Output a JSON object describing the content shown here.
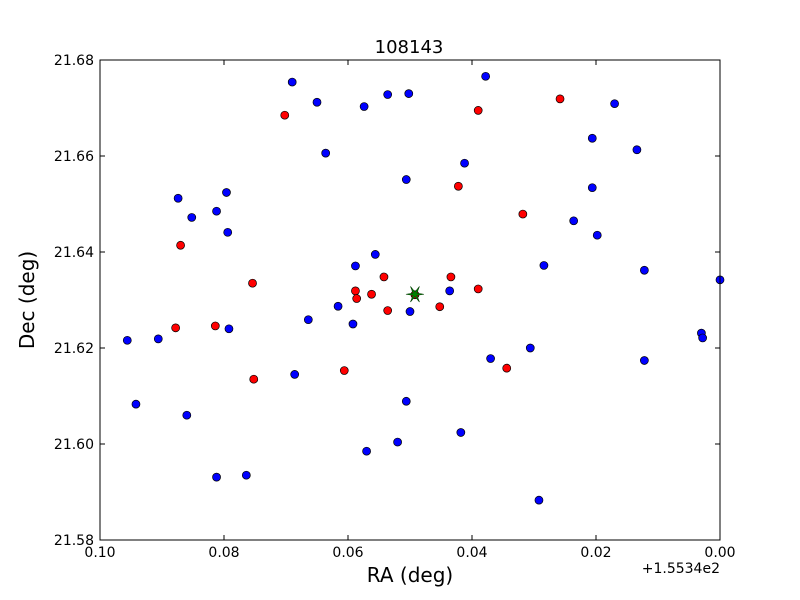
{
  "chart_data": {
    "type": "scatter",
    "title": "108143",
    "xlabel": "RA (deg)",
    "ylabel": "Dec (deg)",
    "x_offset_label": "+1.5534e2",
    "xlim": [
      0.1,
      0.0
    ],
    "ylim": [
      21.58,
      21.68
    ],
    "x_ticks": [
      0.1,
      0.08,
      0.06,
      0.04,
      0.02,
      0.0
    ],
    "x_tick_labels": [
      "0.10",
      "0.08",
      "0.06",
      "0.04",
      "0.02",
      "0.00"
    ],
    "y_ticks": [
      21.58,
      21.6,
      21.62,
      21.64,
      21.66,
      21.68
    ],
    "y_tick_labels": [
      "21.58",
      "21.60",
      "21.62",
      "21.64",
      "21.66",
      "21.68"
    ],
    "grid": false,
    "series": [
      {
        "color": "#0000ff",
        "marker": "circle",
        "points": [
          [
            0.069,
            21.6754
          ],
          [
            0.0378,
            21.6766
          ],
          [
            0.065,
            21.6712
          ],
          [
            0.0574,
            21.6703
          ],
          [
            0.0536,
            21.6728
          ],
          [
            0.0502,
            21.673
          ],
          [
            0.017,
            21.6709
          ],
          [
            0.0206,
            21.6637
          ],
          [
            0.0134,
            21.6613
          ],
          [
            0.0636,
            21.6606
          ],
          [
            0.0412,
            21.6585
          ],
          [
            0.0506,
            21.6551
          ],
          [
            0.0206,
            21.6534
          ],
          [
            0.0874,
            21.6512
          ],
          [
            0.0796,
            21.6524
          ],
          [
            0.0852,
            21.6472
          ],
          [
            0.0812,
            21.6485
          ],
          [
            0.0236,
            21.6465
          ],
          [
            0.0794,
            21.6441
          ],
          [
            0.0198,
            21.6435
          ],
          [
            0.0556,
            21.6395
          ],
          [
            0.0588,
            21.6371
          ],
          [
            0.0284,
            21.6372
          ],
          [
            0.0122,
            21.6362
          ],
          [
            0.0,
            21.6342
          ],
          [
            0.0436,
            21.6319
          ],
          [
            0.0616,
            21.6287
          ],
          [
            0.05,
            21.6276
          ],
          [
            0.0664,
            21.6259
          ],
          [
            0.0592,
            21.625
          ],
          [
            0.0792,
            21.624
          ],
          [
            0.003,
            21.6231
          ],
          [
            0.0028,
            21.6221
          ],
          [
            0.0956,
            21.6216
          ],
          [
            0.0906,
            21.6219
          ],
          [
            0.0306,
            21.62
          ],
          [
            0.037,
            21.6178
          ],
          [
            0.0122,
            21.6174
          ],
          [
            0.0686,
            21.6145
          ],
          [
            0.0942,
            21.6083
          ],
          [
            0.086,
            21.606
          ],
          [
            0.0506,
            21.6089
          ],
          [
            0.0418,
            21.6024
          ],
          [
            0.052,
            21.6004
          ],
          [
            0.057,
            21.5985
          ],
          [
            0.0764,
            21.5935
          ],
          [
            0.0812,
            21.5931
          ],
          [
            0.0292,
            21.5883
          ]
        ]
      },
      {
        "color": "#ff0000",
        "marker": "circle",
        "points": [
          [
            0.0702,
            21.6685
          ],
          [
            0.039,
            21.6695
          ],
          [
            0.0258,
            21.6719
          ],
          [
            0.0422,
            21.6537
          ],
          [
            0.0318,
            21.6479
          ],
          [
            0.087,
            21.6414
          ],
          [
            0.0754,
            21.6335
          ],
          [
            0.0542,
            21.6348
          ],
          [
            0.0434,
            21.6348
          ],
          [
            0.039,
            21.6323
          ],
          [
            0.0588,
            21.6319
          ],
          [
            0.0562,
            21.6312
          ],
          [
            0.0586,
            21.6303
          ],
          [
            0.0492,
            21.6311
          ],
          [
            0.0536,
            21.6278
          ],
          [
            0.0452,
            21.6286
          ],
          [
            0.0878,
            21.6242
          ],
          [
            0.0814,
            21.6246
          ],
          [
            0.0606,
            21.6153
          ],
          [
            0.0344,
            21.6158
          ],
          [
            0.0752,
            21.6135
          ]
        ]
      }
    ],
    "highlight": {
      "marker": "star",
      "color": "#008000",
      "point": [
        0.0492,
        21.6312
      ]
    }
  }
}
